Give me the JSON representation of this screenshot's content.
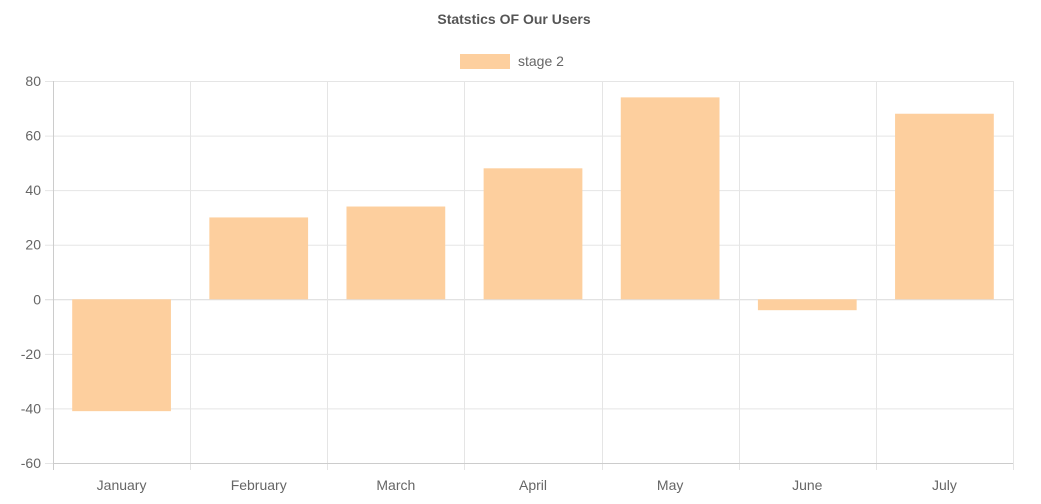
{
  "chart_data": {
    "type": "bar",
    "title": "Statstics OF Our Users",
    "categories": [
      "January",
      "February",
      "March",
      "April",
      "May",
      "June",
      "July"
    ],
    "series": [
      {
        "name": "stage 2",
        "values": [
          -41,
          30,
          34,
          48,
          74,
          -4,
          68
        ]
      }
    ],
    "ylim": [
      -60,
      80
    ],
    "yticks": [
      80,
      60,
      40,
      20,
      0,
      -20,
      -40,
      -60
    ],
    "grid": true,
    "legend": "top-center",
    "colors": {
      "bar": "#fdcf9e",
      "grid": "#e5e5e5",
      "axis": "#cccccc"
    }
  }
}
